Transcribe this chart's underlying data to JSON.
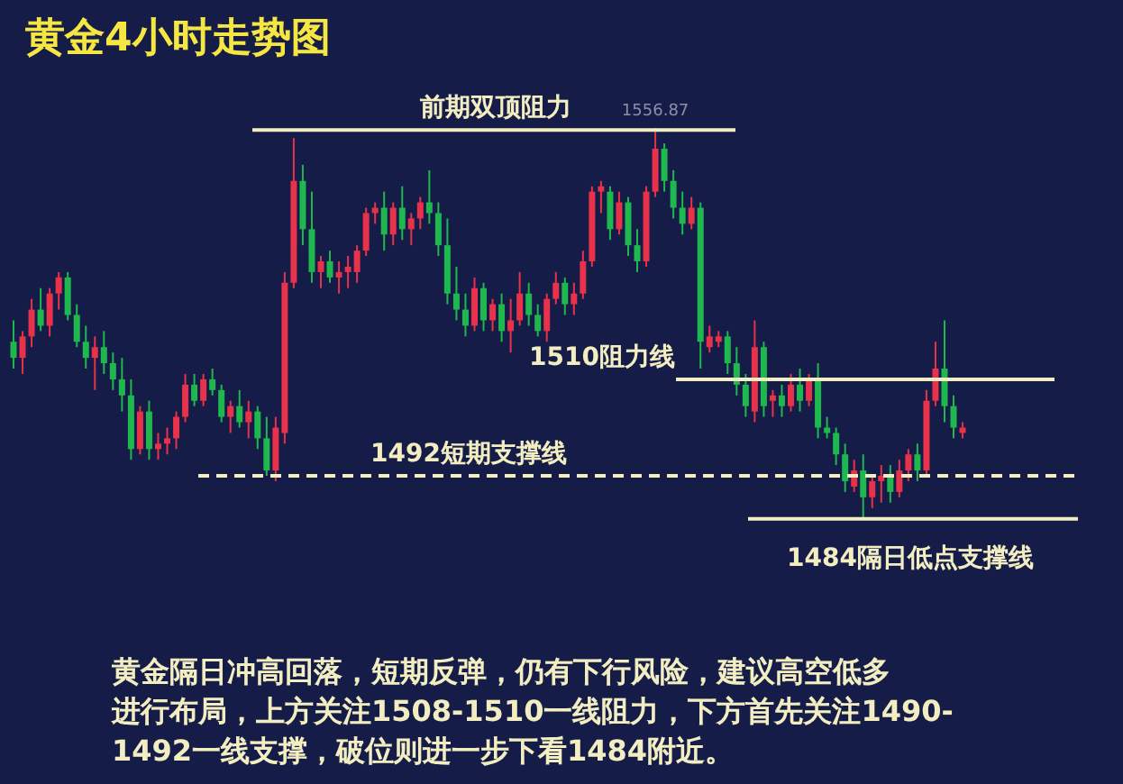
{
  "chart_data": {
    "type": "candlestick",
    "title": "黄金4小时走势图",
    "relative": false,
    "categories": [
      null,
      null,
      null,
      null,
      null,
      null,
      null,
      null,
      null,
      null,
      null,
      null,
      null,
      null,
      null,
      null,
      null,
      null,
      null,
      null,
      null,
      null,
      null,
      null,
      null,
      null,
      null,
      null,
      null,
      null,
      null,
      null,
      null,
      null,
      null,
      null,
      null,
      null,
      null,
      null,
      null,
      null,
      null,
      null,
      null,
      null,
      null,
      null,
      null,
      null,
      null,
      null,
      null,
      null,
      null,
      null,
      null,
      null,
      null,
      null,
      null,
      null,
      null,
      null,
      null,
      null,
      null,
      null,
      null,
      null,
      null,
      null,
      null,
      null,
      null,
      null,
      null,
      null,
      null,
      null,
      null,
      null,
      null,
      null,
      null,
      null,
      null,
      null,
      null,
      null,
      null,
      null,
      null,
      null,
      null,
      null,
      null,
      null,
      null,
      null,
      null,
      null,
      null,
      null,
      null,
      null
    ],
    "ohlc": [
      [
        1517,
        1521,
        1512,
        1514
      ],
      [
        1514,
        1519,
        1511,
        1518
      ],
      [
        1518,
        1525,
        1516,
        1523
      ],
      [
        1523,
        1527,
        1519,
        1520
      ],
      [
        1520,
        1527,
        1518,
        1526
      ],
      [
        1526,
        1530,
        1523,
        1529
      ],
      [
        1529,
        1530,
        1521,
        1522
      ],
      [
        1522,
        1524,
        1516,
        1517
      ],
      [
        1517,
        1520,
        1512,
        1514
      ],
      [
        1514,
        1518,
        1508,
        1516
      ],
      [
        1516,
        1519,
        1511,
        1513
      ],
      [
        1513,
        1515,
        1508,
        1510
      ],
      [
        1510,
        1514,
        1504,
        1507
      ],
      [
        1507,
        1510,
        1495,
        1497
      ],
      [
        1497,
        1505,
        1496,
        1504
      ],
      [
        1504,
        1506,
        1495,
        1497
      ],
      [
        1497,
        1500,
        1495,
        1498
      ],
      [
        1498,
        1501,
        1496,
        1499
      ],
      [
        1499,
        1504,
        1497,
        1503
      ],
      [
        1503,
        1511,
        1502,
        1509
      ],
      [
        1509,
        1511,
        1505,
        1506
      ],
      [
        1506,
        1511,
        1505,
        1510
      ],
      [
        1510,
        1512,
        1507,
        1508
      ],
      [
        1508,
        1509,
        1502,
        1503
      ],
      [
        1503,
        1506,
        1500,
        1505
      ],
      [
        1505,
        1508,
        1501,
        1502
      ],
      [
        1502,
        1506,
        1499,
        1504
      ],
      [
        1504,
        1505,
        1497,
        1499
      ],
      [
        1499,
        1503,
        1492,
        1493
      ],
      [
        1493,
        1503,
        1491,
        1501
      ],
      [
        1500,
        1530,
        1498,
        1528
      ],
      [
        1528,
        1555,
        1527,
        1547
      ],
      [
        1547,
        1550,
        1535,
        1538
      ],
      [
        1538,
        1545,
        1528,
        1530
      ],
      [
        1530,
        1533,
        1527,
        1532
      ],
      [
        1532,
        1534,
        1528,
        1529
      ],
      [
        1529,
        1532,
        1526,
        1530
      ],
      [
        1530,
        1533,
        1527,
        1531
      ],
      [
        1530,
        1535,
        1528,
        1534
      ],
      [
        1534,
        1542,
        1533,
        1541
      ],
      [
        1541,
        1543,
        1539,
        1542
      ],
      [
        1542,
        1545,
        1534,
        1537
      ],
      [
        1537,
        1543,
        1535,
        1542
      ],
      [
        1542,
        1546,
        1536,
        1538
      ],
      [
        1538,
        1541,
        1535,
        1540
      ],
      [
        1540,
        1544,
        1538,
        1543
      ],
      [
        1543,
        1549,
        1539,
        1541
      ],
      [
        1541,
        1543,
        1533,
        1535
      ],
      [
        1535,
        1540,
        1524,
        1526
      ],
      [
        1526,
        1531,
        1521,
        1523
      ],
      [
        1523,
        1526,
        1518,
        1520
      ],
      [
        1520,
        1529,
        1519,
        1527
      ],
      [
        1527,
        1528,
        1519,
        1521
      ],
      [
        1521,
        1525,
        1519,
        1524
      ],
      [
        1524,
        1526,
        1517,
        1519
      ],
      [
        1519,
        1525,
        1515,
        1521
      ],
      [
        1521,
        1530,
        1520,
        1526
      ],
      [
        1526,
        1528,
        1520,
        1522
      ],
      [
        1522,
        1524,
        1518,
        1519
      ],
      [
        1519,
        1526,
        1517,
        1525
      ],
      [
        1525,
        1530,
        1524,
        1528
      ],
      [
        1528,
        1529,
        1522,
        1524
      ],
      [
        1524,
        1528,
        1522,
        1526
      ],
      [
        1526,
        1534,
        1525,
        1532
      ],
      [
        1532,
        1546,
        1531,
        1545
      ],
      [
        1545,
        1547,
        1541,
        1546
      ],
      [
        1545,
        1546,
        1536,
        1538
      ],
      [
        1538,
        1545,
        1537,
        1543
      ],
      [
        1543,
        1544,
        1533,
        1535
      ],
      [
        1535,
        1538,
        1530,
        1532
      ],
      [
        1532,
        1546,
        1531,
        1545
      ],
      [
        1545,
        1556.87,
        1544,
        1553
      ],
      [
        1553,
        1554,
        1545,
        1547
      ],
      [
        1547,
        1549,
        1540,
        1542
      ],
      [
        1542,
        1545,
        1537,
        1539
      ],
      [
        1539,
        1544,
        1538,
        1542
      ],
      [
        1542,
        1543,
        1512,
        1517
      ],
      [
        1516,
        1520,
        1515,
        1518
      ],
      [
        1517,
        1519,
        1516,
        1518
      ],
      [
        1518,
        1519,
        1511,
        1513
      ],
      [
        1513,
        1516,
        1507,
        1509
      ],
      [
        1509,
        1511,
        1503,
        1505
      ],
      [
        1504,
        1521,
        1502,
        1516
      ],
      [
        1516,
        1517,
        1503,
        1505
      ],
      [
        1506,
        1508,
        1503,
        1507
      ],
      [
        1507,
        1509,
        1503,
        1505
      ],
      [
        1505,
        1511,
        1504,
        1509
      ],
      [
        1509,
        1512,
        1504,
        1506
      ],
      [
        1506,
        1511,
        1505,
        1510
      ],
      [
        1510,
        1513,
        1499,
        1501
      ],
      [
        1501,
        1503,
        1499,
        1500
      ],
      [
        1500,
        1501,
        1494,
        1496
      ],
      [
        1496,
        1498,
        1489,
        1491
      ],
      [
        1490,
        1495,
        1489,
        1493
      ],
      [
        1493,
        1496,
        1484,
        1488
      ],
      [
        1488,
        1492,
        1486,
        1491
      ],
      [
        1491,
        1494,
        1487,
        1492
      ],
      [
        1492,
        1494,
        1487,
        1489
      ],
      [
        1489,
        1495,
        1488,
        1493
      ],
      [
        1493,
        1497,
        1491,
        1496
      ],
      [
        1496,
        1498,
        1491,
        1493
      ],
      [
        1493,
        1508,
        1492,
        1506
      ],
      [
        1506,
        1517,
        1505,
        1512
      ],
      [
        1512,
        1521,
        1502,
        1505
      ],
      [
        1505,
        1507,
        1499,
        1501
      ],
      [
        1500,
        1502,
        1499,
        1501
      ]
    ],
    "colors": [
      "#1fb84f",
      "#e8314a",
      "#e8314a",
      "#1fb84f",
      "#e8314a",
      "#e8314a",
      "#1fb84f",
      "#1fb84f",
      "#1fb84f",
      "#e8314a",
      "#1fb84f",
      "#1fb84f",
      "#1fb84f",
      "#1fb84f",
      "#e8314a",
      "#1fb84f",
      "#e8314a",
      "#e8314a",
      "#e8314a",
      "#e8314a",
      "#1fb84f",
      "#e8314a",
      "#1fb84f",
      "#1fb84f",
      "#e8314a",
      "#1fb84f",
      "#e8314a",
      "#1fb84f",
      "#1fb84f",
      "#e8314a",
      "#e8314a",
      "#e8314a",
      "#1fb84f",
      "#1fb84f",
      "#e8314a",
      "#1fb84f",
      "#e8314a",
      "#e8314a",
      "#e8314a",
      "#e8314a",
      "#e8314a",
      "#1fb84f",
      "#e8314a",
      "#1fb84f",
      "#e8314a",
      "#e8314a",
      "#1fb84f",
      "#1fb84f",
      "#1fb84f",
      "#1fb84f",
      "#1fb84f",
      "#e8314a",
      "#1fb84f",
      "#e8314a",
      "#1fb84f",
      "#e8314a",
      "#e8314a",
      "#1fb84f",
      "#1fb84f",
      "#e8314a",
      "#e8314a",
      "#1fb84f",
      "#e8314a",
      "#e8314a",
      "#e8314a",
      "#e8314a",
      "#1fb84f",
      "#e8314a",
      "#1fb84f",
      "#1fb84f",
      "#e8314a",
      "#e8314a",
      "#1fb84f",
      "#1fb84f",
      "#1fb84f",
      "#e8314a",
      "#1fb84f",
      "#e8314a",
      "#e8314a",
      "#1fb84f",
      "#1fb84f",
      "#1fb84f",
      "#e8314a",
      "#1fb84f",
      "#e8314a",
      "#1fb84f",
      "#e8314a",
      "#1fb84f",
      "#e8314a",
      "#1fb84f",
      "#1fb84f",
      "#1fb84f",
      "#1fb84f",
      "#e8314a",
      "#1fb84f",
      "#e8314a",
      "#e8314a",
      "#1fb84f",
      "#e8314a",
      "#e8314a",
      "#1fb84f",
      "#e8314a",
      "#e8314a",
      "#1fb84f",
      "#1fb84f",
      "#e8314a"
    ],
    "ref_lines": [
      {
        "axis": "y",
        "value": 1556.5,
        "label": "前期双顶阻力",
        "color": "#f3eec2",
        "line_style": "solid"
      },
      {
        "axis": "y",
        "value": 1510,
        "label": "1510阻力线",
        "color": "#f3eec2",
        "line_style": "solid"
      },
      {
        "axis": "y",
        "value": 1492,
        "label": "1492短期支撑线",
        "color": "#f3eec2",
        "line_style": "dashed"
      },
      {
        "axis": "y",
        "value": 1484,
        "label": "1484隔日低点支撑线",
        "color": "#f3eec2",
        "line_style": "solid"
      }
    ],
    "annotations": [
      {
        "text": "1556.87",
        "y": 1556.87
      },
      "黄金隔日冲高回落，短期反弹，仍有下行风险，建议高空低多进行布局，上方关注1508-1510一线阻力，下方首先关注1490-1492一线支撑，破位则进一步下看1484附近。"
    ],
    "tick_labels": false
  }
}
